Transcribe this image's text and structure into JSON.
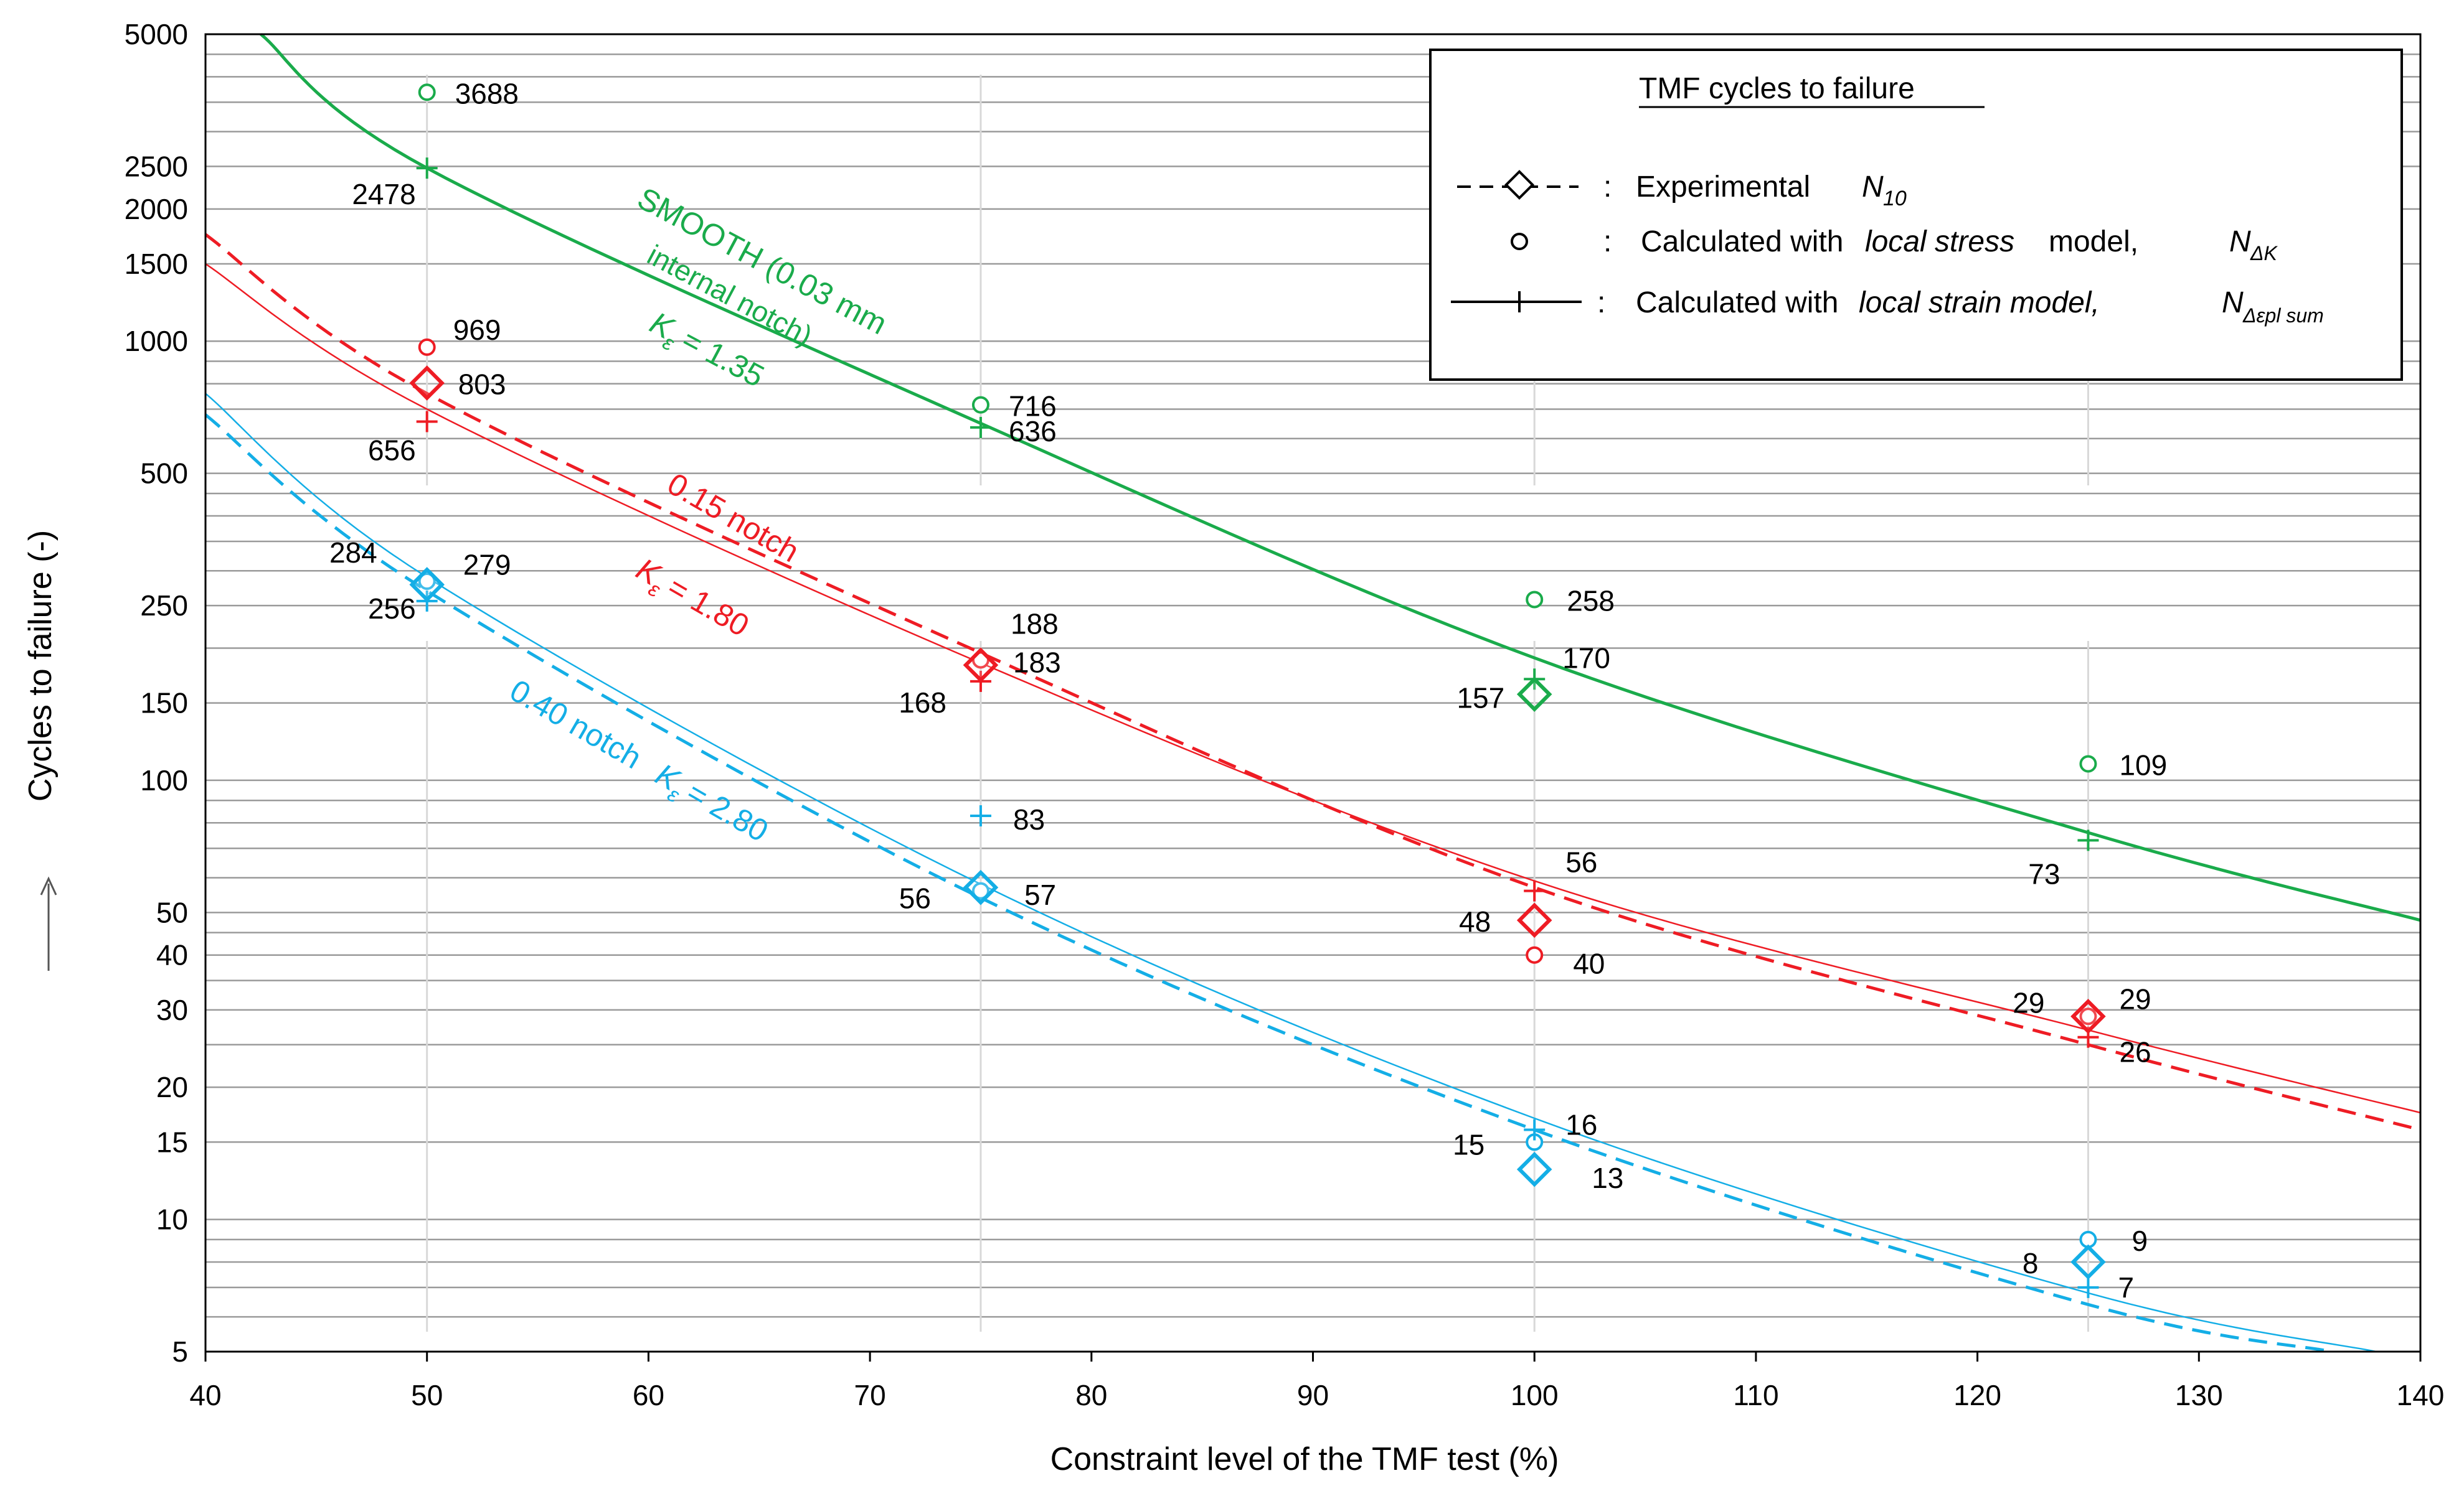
{
  "chart_data": {
    "type": "scatter",
    "title": "TMF cycles  to failure",
    "xlabel": "Constraint level of the TMF test (%)",
    "ylabel": "Cycles to failure (-)",
    "ylabel_arrow": "→",
    "xlim": [
      40,
      140
    ],
    "ylim": [
      5,
      5000
    ],
    "yscale": "log",
    "x_ticks": [
      40,
      50,
      60,
      70,
      80,
      90,
      100,
      110,
      120,
      130,
      140
    ],
    "y_tick_labels": [
      {
        "value": 5,
        "label": "5"
      },
      {
        "value": 10,
        "label": "10"
      },
      {
        "value": 15,
        "label": "15"
      },
      {
        "value": 20,
        "label": "20"
      },
      {
        "value": 30,
        "label": "30"
      },
      {
        "value": 40,
        "label": "40"
      },
      {
        "value": 50,
        "label": "50"
      },
      {
        "value": 100,
        "label": "100"
      },
      {
        "value": 150,
        "label": "150"
      },
      {
        "value": 250,
        "label": "250"
      },
      {
        "value": 500,
        "label": "500"
      },
      {
        "value": 1000,
        "label": "1000"
      },
      {
        "value": 1500,
        "label": "1500"
      },
      {
        "value": 2000,
        "label": "2000"
      },
      {
        "value": 2500,
        "label": "2500"
      },
      {
        "value": 5000,
        "label": "5000"
      }
    ],
    "minor_gridlines": [
      6,
      7,
      8,
      9,
      25,
      35,
      45,
      60,
      70,
      80,
      90,
      200,
      300,
      350,
      400,
      450,
      600,
      700,
      800,
      900,
      3000,
      3500,
      4000,
      4500
    ],
    "vertical_guides": [
      50,
      75,
      100,
      125
    ],
    "colors": {
      "smooth": "#1aab4b",
      "n015": "#ee1c24",
      "n040": "#14aee6"
    },
    "series": [
      {
        "name": "SMOOTH (0.03 mm internal notch)",
        "kfactor": "= 1.35",
        "color": "smooth",
        "experimental": [
          {
            "x": 100,
            "y": 157,
            "label": "157"
          }
        ],
        "local_stress": [
          {
            "x": 50,
            "y": 3688,
            "label": "3688"
          },
          {
            "x": 75,
            "y": 716,
            "label": "716"
          },
          {
            "x": 100,
            "y": 258,
            "label": "258"
          },
          {
            "x": 125,
            "y": 109,
            "label": "109"
          }
        ],
        "local_strain": [
          {
            "x": 50,
            "y": 2478,
            "label": "2478"
          },
          {
            "x": 75,
            "y": 636,
            "label": "636"
          },
          {
            "x": 100,
            "y": 170,
            "label": "170"
          },
          {
            "x": 125,
            "y": 73,
            "label": "73"
          }
        ],
        "strain_curve": [
          [
            42.5,
            5000
          ],
          [
            50,
            2478
          ],
          [
            75,
            650
          ],
          [
            100,
            190
          ],
          [
            125,
            76
          ],
          [
            140,
            48
          ]
        ]
      },
      {
        "name": "0.15 notch",
        "kfactor": "= 1.80",
        "color": "n015",
        "experimental": [
          {
            "x": 50,
            "y": 803,
            "label": "803"
          },
          {
            "x": 75,
            "y": 183,
            "label": "183"
          },
          {
            "x": 100,
            "y": 48,
            "label": "48"
          },
          {
            "x": 125,
            "y": 29,
            "label": "29"
          }
        ],
        "local_stress": [
          {
            "x": 50,
            "y": 969,
            "label": "969"
          },
          {
            "x": 75,
            "y": 188,
            "label": "188"
          },
          {
            "x": 100,
            "y": 40,
            "label": "40"
          },
          {
            "x": 125,
            "y": 29,
            "label": "29"
          }
        ],
        "local_strain": [
          {
            "x": 50,
            "y": 656,
            "label": "656"
          },
          {
            "x": 75,
            "y": 168,
            "label": "168"
          },
          {
            "x": 100,
            "y": 56,
            "label": "56"
          },
          {
            "x": 125,
            "y": 26,
            "label": "26"
          }
        ],
        "exp_curve": [
          [
            40,
            1750
          ],
          [
            50,
            760
          ],
          [
            75,
            195
          ],
          [
            100,
            57
          ],
          [
            125,
            25
          ],
          [
            140,
            16
          ]
        ],
        "strain_curve": [
          [
            40,
            1500
          ],
          [
            50,
            700
          ],
          [
            75,
            185
          ],
          [
            100,
            59
          ],
          [
            125,
            27
          ],
          [
            140,
            17.5
          ]
        ]
      },
      {
        "name": "0.40 notch",
        "kfactor": "= 2.80",
        "color": "n040",
        "experimental": [
          {
            "x": 50,
            "y": 279,
            "label": "279"
          },
          {
            "x": 75,
            "y": 57,
            "label": "57"
          },
          {
            "x": 100,
            "y": 13,
            "label": "13"
          },
          {
            "x": 125,
            "y": 8,
            "label": "8"
          }
        ],
        "local_stress": [
          {
            "x": 50,
            "y": 284,
            "label": "284"
          },
          {
            "x": 75,
            "y": 56,
            "label": "56"
          },
          {
            "x": 100,
            "y": 15,
            "label": "15"
          },
          {
            "x": 125,
            "y": 9,
            "label": "9"
          }
        ],
        "local_strain": [
          {
            "x": 50,
            "y": 256,
            "label": "256"
          },
          {
            "x": 75,
            "y": 83,
            "label": "83"
          },
          {
            "x": 100,
            "y": 16,
            "label": "16"
          },
          {
            "x": 125,
            "y": 7,
            "label": "7"
          }
        ],
        "exp_curve": [
          [
            40,
            680
          ],
          [
            50,
            270
          ],
          [
            75,
            54
          ],
          [
            100,
            16
          ],
          [
            125,
            6.4
          ],
          [
            136,
            5
          ]
        ],
        "strain_curve": [
          [
            40,
            760
          ],
          [
            50,
            290
          ],
          [
            75,
            58
          ],
          [
            100,
            17
          ],
          [
            125,
            6.8
          ],
          [
            138,
            5
          ]
        ]
      }
    ],
    "legend": {
      "title": "TMF cycles  to failure",
      "position": "top-right",
      "rows": [
        {
          "symbol": "- - ◇- - -",
          "sep": ":",
          "text": "Experimental",
          "var": "N",
          "sub": "10"
        },
        {
          "symbol": "o",
          "sep": ":",
          "text": "Calculated with",
          "italic": "local stress",
          "tail": "model,",
          "var": "N",
          "sub": "ΔK"
        },
        {
          "symbol": "——+——",
          "sep": ":",
          "text": "Calculated with",
          "italic": "local strain model,",
          "var": "N",
          "sub": "Δεpl sum"
        }
      ]
    },
    "annotations": [
      {
        "text": "SMOOTH (0.03 mm",
        "color": "smooth"
      },
      {
        "text": "internal notch)",
        "color": "smooth"
      },
      {
        "text": "0.15 notch",
        "color": "n015"
      },
      {
        "text": "0.40 notch",
        "color": "n040"
      },
      {
        "text": "K",
        "sub": "ε",
        "color": "smooth"
      }
    ]
  }
}
